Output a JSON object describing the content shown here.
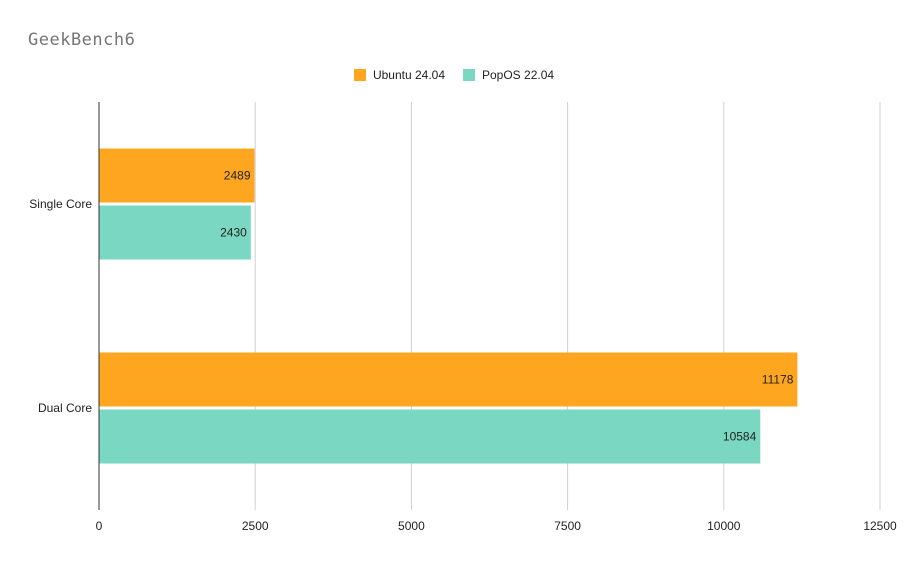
{
  "chart_data": {
    "type": "bar",
    "orientation": "horizontal",
    "title": "GeekBench6",
    "categories": [
      "Single Core",
      "Dual Core"
    ],
    "series": [
      {
        "name": "Ubuntu 24.04",
        "values": [
          2489,
          11178
        ],
        "color": "#ffa620"
      },
      {
        "name": "PopOS 22.04",
        "values": [
          2430,
          10584
        ],
        "color": "#7ad8c2"
      }
    ],
    "xlim": [
      0,
      12500
    ],
    "x_ticks": [
      "0",
      "2500",
      "5000",
      "7500",
      "10000",
      "12500"
    ],
    "grid": true,
    "legend_position": "top-center",
    "data_labels": true
  }
}
